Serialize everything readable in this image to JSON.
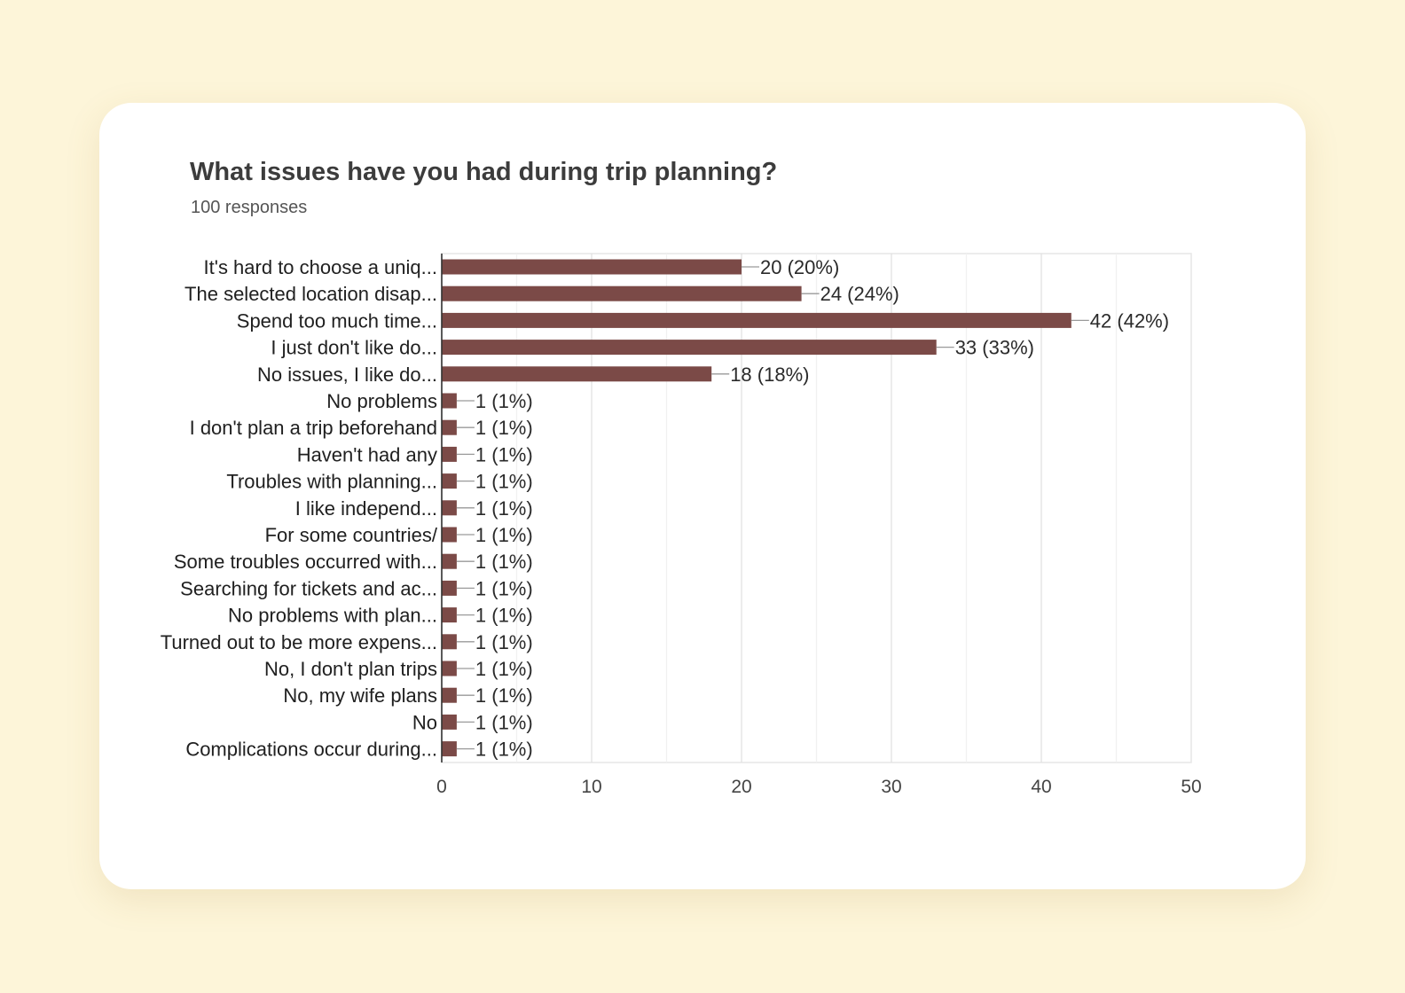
{
  "chart_data": {
    "type": "bar",
    "orientation": "horizontal",
    "title": "What issues have you had during trip planning?",
    "subtitle": "100 responses",
    "xlabel": "",
    "ylabel": "",
    "xlim": [
      0,
      50
    ],
    "x_ticks": [
      "0",
      "10",
      "20",
      "30",
      "40",
      "50"
    ],
    "grid": true,
    "categories": [
      "It's hard to choose a uniq...",
      "The selected location disap...",
      "Spend too much time...",
      "I just don't like do...",
      "No issues, I like do...",
      "No problems",
      "I don't plan a trip beforehand",
      "Haven't had any",
      "Troubles with planning...",
      "I like independ...",
      "For some countries/",
      "Some troubles occurred with...",
      "Searching for tickets and ac...",
      "No problems with plan...",
      "Turned out to be more expens...",
      "No, I don't plan trips",
      "No, my wife plans",
      "No",
      "Complications occur during..."
    ],
    "values": [
      20,
      24,
      42,
      33,
      18,
      1,
      1,
      1,
      1,
      1,
      1,
      1,
      1,
      1,
      1,
      1,
      1,
      1,
      1
    ],
    "value_labels": [
      "20 (20%)",
      "24 (24%)",
      "42 (42%)",
      "33 (33%)",
      "18 (18%)",
      "1 (1%)",
      "1 (1%)",
      "1 (1%)",
      "1 (1%)",
      "1 (1%)",
      "1 (1%)",
      "1 (1%)",
      "1 (1%)",
      "1 (1%)",
      "1 (1%)",
      "1 (1%)",
      "1 (1%)",
      "1 (1%)",
      "1 (1%)"
    ],
    "bar_color": "#7b4a47"
  }
}
